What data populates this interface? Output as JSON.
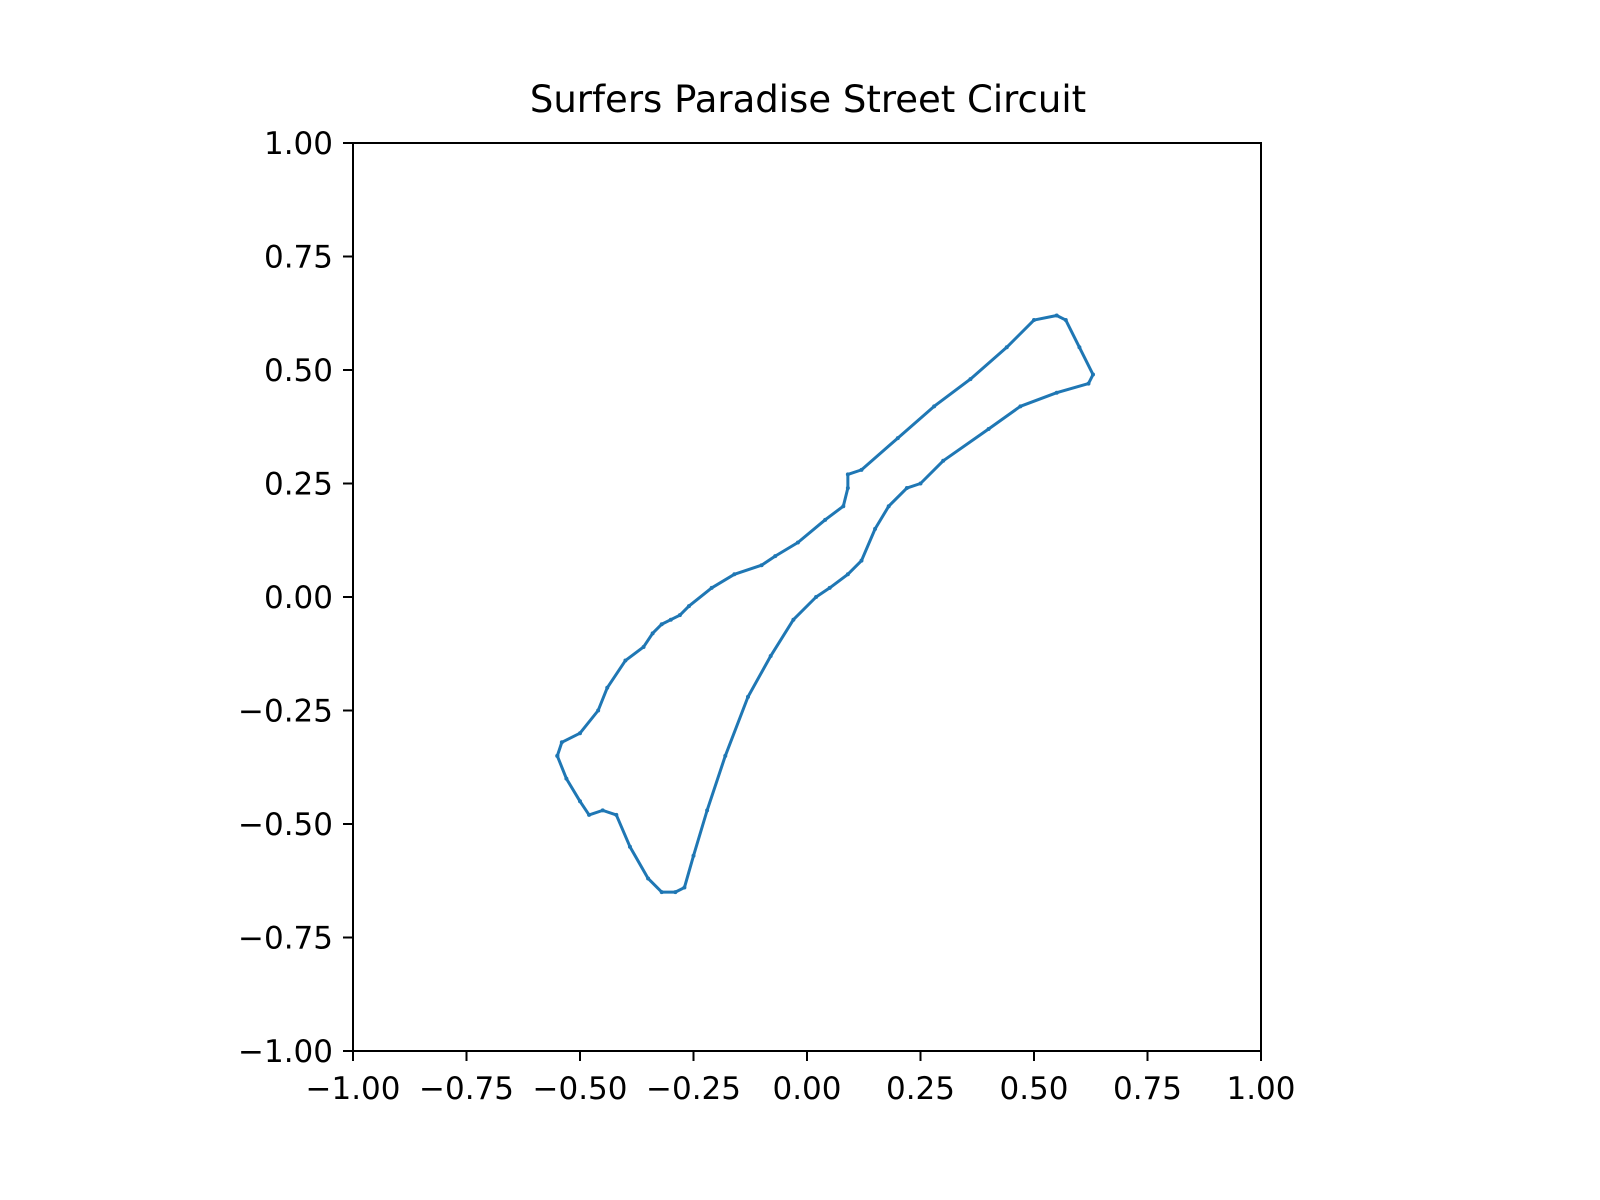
{
  "chart_data": {
    "type": "line",
    "title": "Surfers Paradise Street Circuit",
    "xlabel": "",
    "ylabel": "",
    "xlim": [
      -1.0,
      1.0
    ],
    "ylim": [
      -1.0,
      1.0
    ],
    "grid": false,
    "legend": "none",
    "x_ticks": [
      -1.0,
      -0.75,
      -0.5,
      -0.25,
      0.0,
      0.25,
      0.5,
      0.75,
      1.0
    ],
    "y_ticks": [
      -1.0,
      -0.75,
      -0.5,
      -0.25,
      0.0,
      0.25,
      0.5,
      0.75,
      1.0
    ],
    "x_tick_labels": [
      "−1.00",
      "−0.75",
      "−0.50",
      "−0.25",
      "0.00",
      "0.25",
      "0.50",
      "0.75",
      "1.00"
    ],
    "y_tick_labels": [
      "−1.00",
      "−0.75",
      "−0.50",
      "−0.25",
      "0.00",
      "0.25",
      "0.50",
      "0.75",
      "1.00"
    ],
    "series": [
      {
        "color": "#1f77b4",
        "x": [
          -0.55,
          -0.54,
          -0.5,
          -0.46,
          -0.44,
          -0.4,
          -0.36,
          -0.34,
          -0.32,
          -0.3,
          -0.28,
          -0.26,
          -0.21,
          -0.16,
          -0.1,
          -0.07,
          -0.02,
          0.04,
          0.08,
          0.09,
          0.09,
          0.12,
          0.2,
          0.28,
          0.36,
          0.44,
          0.5,
          0.55,
          0.57,
          0.6,
          0.63,
          0.62,
          0.55,
          0.47,
          0.4,
          0.3,
          0.25,
          0.22,
          0.18,
          0.15,
          0.12,
          0.09,
          0.05,
          0.02,
          -0.03,
          -0.08,
          -0.13,
          -0.18,
          -0.22,
          -0.25,
          -0.27,
          -0.29,
          -0.32,
          -0.35,
          -0.39,
          -0.42,
          -0.45,
          -0.48,
          -0.5,
          -0.53,
          -0.55
        ],
        "y": [
          -0.35,
          -0.32,
          -0.3,
          -0.25,
          -0.2,
          -0.14,
          -0.11,
          -0.08,
          -0.06,
          -0.05,
          -0.04,
          -0.02,
          0.02,
          0.05,
          0.07,
          0.09,
          0.12,
          0.17,
          0.2,
          0.24,
          0.27,
          0.28,
          0.35,
          0.42,
          0.48,
          0.55,
          0.61,
          0.62,
          0.61,
          0.55,
          0.49,
          0.47,
          0.45,
          0.42,
          0.37,
          0.3,
          0.25,
          0.24,
          0.2,
          0.15,
          0.08,
          0.05,
          0.02,
          0.0,
          -0.05,
          -0.13,
          -0.22,
          -0.35,
          -0.47,
          -0.57,
          -0.64,
          -0.65,
          -0.65,
          -0.62,
          -0.55,
          -0.48,
          -0.47,
          -0.48,
          -0.45,
          -0.4,
          -0.35
        ]
      }
    ]
  }
}
